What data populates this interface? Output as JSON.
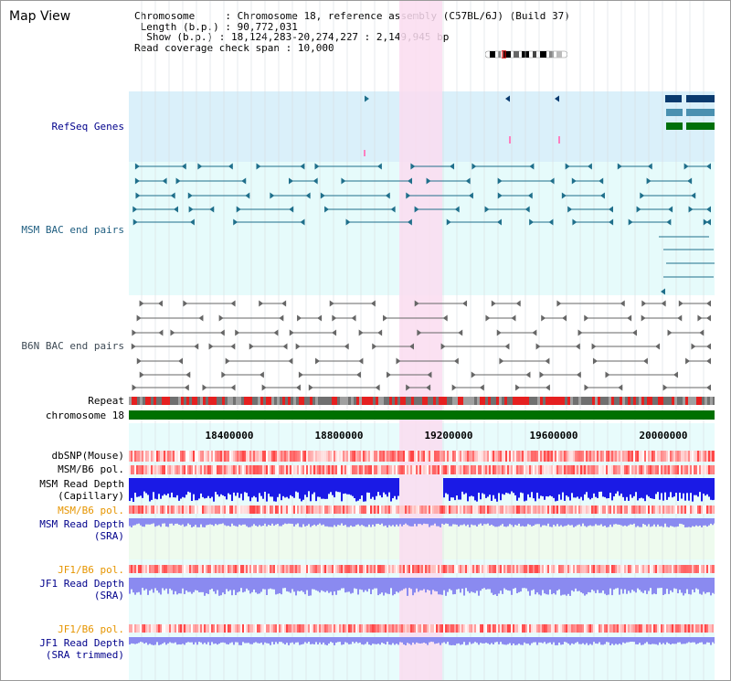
{
  "title": "Map View",
  "info": {
    "chromosome_label": "Chromosome",
    "chromosome_value": "Chromosome 18, reference assembly (C57BL/6J) (Build 37)",
    "length_label": "Length (b.p.)",
    "length_value": "90,772,031",
    "show_label": "Show (b.p.)",
    "show_value": "18,124,283-20,274,227 : 2,149,945 bp",
    "coverage_label": "Read coverage check span",
    "coverage_value": "10,000"
  },
  "tracks": {
    "refseq": "RefSeq Genes",
    "msm_bac": "MSM BAC end pairs",
    "b6n_bac": "B6N BAC end pairs",
    "repeat": "Repeat",
    "chromosome": "chromosome 18",
    "dbsnp": "dbSNP(Mouse)",
    "msm_b6_pol_1": "MSM/B6 pol.",
    "msm_depth_cap": "MSM Read Depth\n(Capillary)",
    "msm_b6_pol_2": "MSM/B6 pol.",
    "msm_depth_sra": "MSM Read Depth\n(SRA)",
    "jf1_b6_pol_1": "JF1/B6 pol.",
    "jf1_depth_sra": "JF1 Read Depth\n(SRA)",
    "jf1_b6_pol_2": "JF1/B6 pol.",
    "jf1_depth_trim": "JF1 Read Depth\n(SRA trimmed)"
  },
  "ticks": [
    "18400000",
    "18800000",
    "19200000",
    "19600000",
    "20000000"
  ],
  "colors": {
    "refseq_bg": "#daf0fa",
    "msm_bac_bg": "#e6fbfb",
    "b6n_bac_bg": "#ffffff",
    "track_bg": "#e8fcfc",
    "highlight": "#fadcf0",
    "chromosome": "#007000",
    "msm_bac_feature": "#1f6f8b",
    "b6n_bac_feature": "#666666",
    "depth_capillary": "#1a1ae6",
    "depth_sra": "#8a8af0",
    "pol": "#ff5050"
  }
}
